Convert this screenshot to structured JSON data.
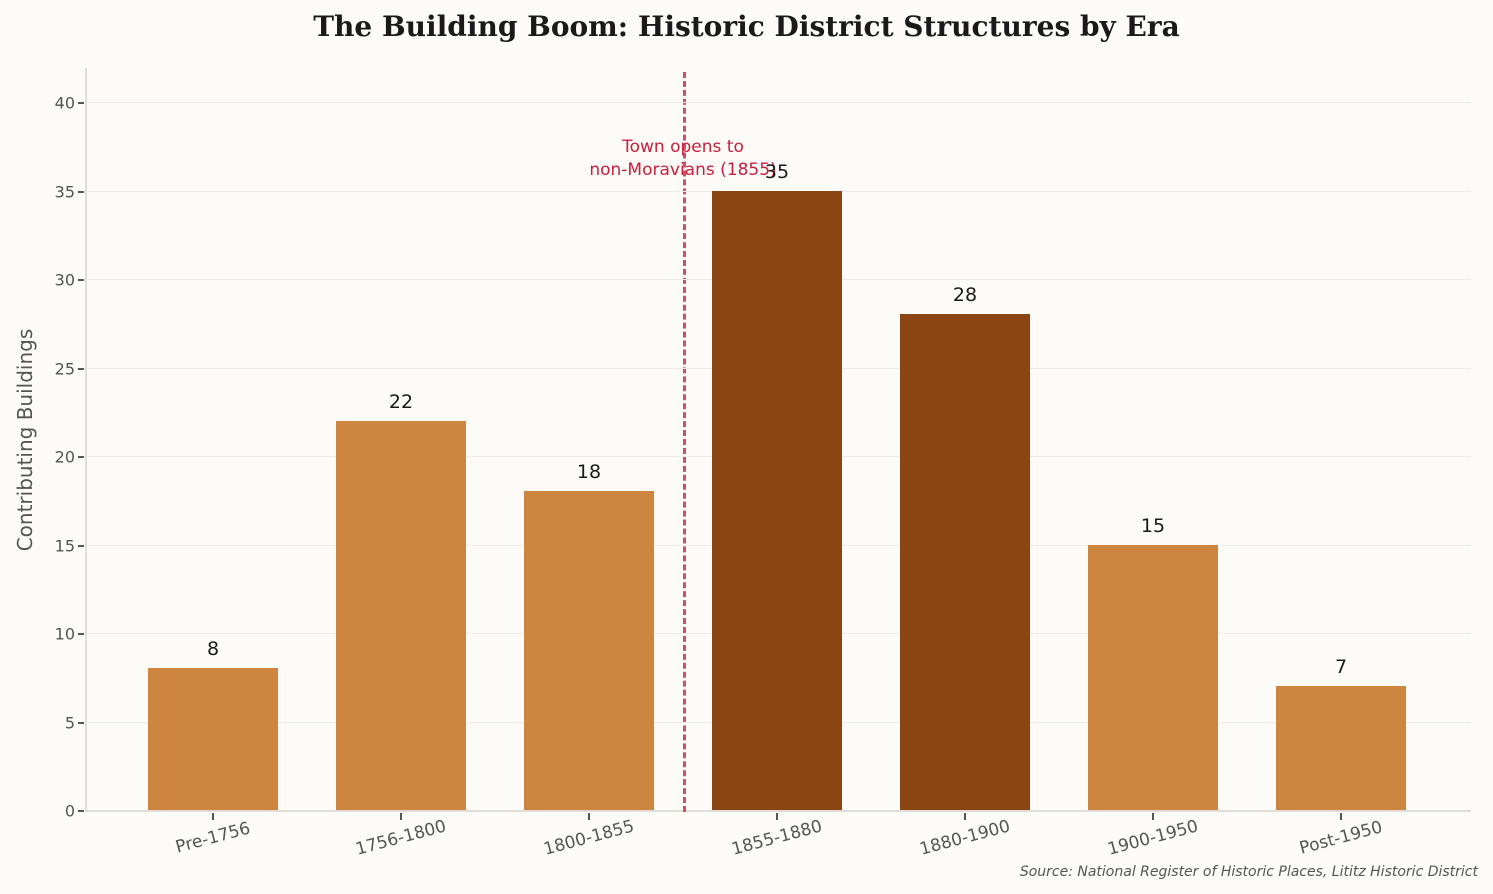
{
  "chart_data": {
    "type": "bar",
    "title": "The Building Boom: Historic District Structures by Era",
    "xlabel": "",
    "ylabel": "Contributing Buildings",
    "categories": [
      "Pre-1756",
      "1756-1800",
      "1800-1855",
      "1855-1880",
      "1880-1900",
      "1900-1950",
      "Post-1950"
    ],
    "values": [
      8,
      22,
      18,
      35,
      28,
      15,
      7
    ],
    "bar_colors": [
      "#cd853f",
      "#cd853f",
      "#cd853f",
      "#8b4513",
      "#8b4513",
      "#cd853f",
      "#cd853f"
    ],
    "ylim": [
      0,
      42
    ],
    "yticks": [
      0,
      5,
      10,
      15,
      20,
      25,
      30,
      35,
      40
    ],
    "grid": true,
    "annotations": [
      {
        "text": "Town opens to\nnon-Moravians (1855)",
        "x_position": "between 1800-1855 and 1855-1880",
        "style": "dashed vertical line",
        "color": "#c7203f"
      }
    ],
    "source": "Source: National Register of Historic Places, Lititz Historic District"
  },
  "labels": {
    "title": "The Building Boom: Historic District Structures by Era",
    "ylabel": "Contributing Buildings",
    "annotation_line1": "Town opens to",
    "annotation_line2": "non-Moravians (1855)",
    "source": "Source: National Register of Historic Places, Lititz Historic District"
  }
}
